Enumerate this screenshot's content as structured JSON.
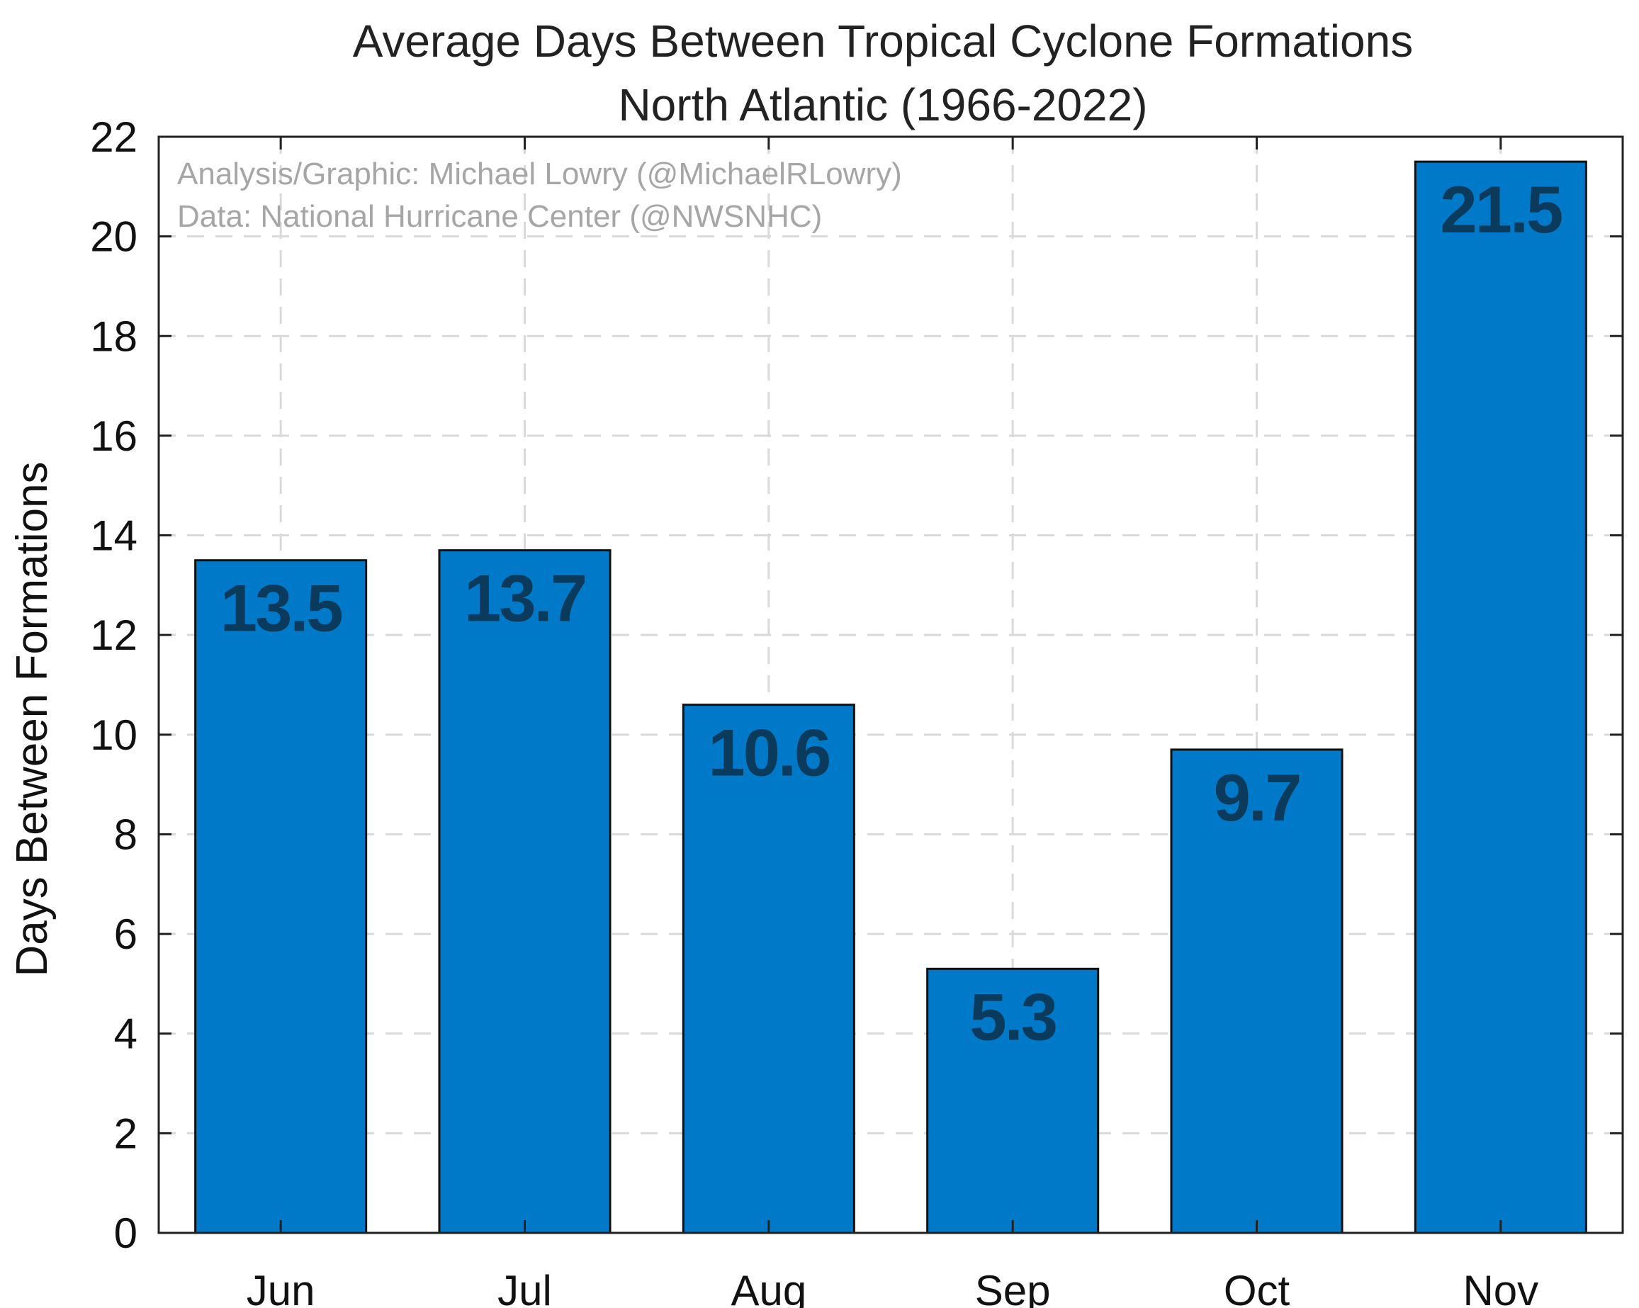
{
  "chart_data": {
    "type": "bar",
    "title_lines": [
      "Average Days Between Tropical Cyclone Formations",
      "North Atlantic (1966-2022)"
    ],
    "xlabel": "",
    "ylabel": "Days Between Formations",
    "categories": [
      "Jun",
      "Jul",
      "Aug",
      "Sep",
      "Oct",
      "Nov"
    ],
    "values": [
      13.5,
      13.7,
      10.6,
      5.3,
      9.7,
      21.5
    ],
    "value_labels": [
      "13.5",
      "13.7",
      "10.6",
      "5.3",
      "9.7",
      "21.5"
    ],
    "ylim": [
      0,
      22
    ],
    "yticks": [
      0,
      2,
      4,
      6,
      8,
      10,
      12,
      14,
      16,
      18,
      20,
      22
    ],
    "grid": true,
    "legend": "none",
    "annotations": [
      "Analysis/Graphic: Michael Lowry (@MichaelRLowry)",
      "Data: National Hurricane Center (@NWSNHC)"
    ],
    "colors": {
      "bar": "#007ac8",
      "bar_edge": "#111111",
      "value_label": "#0b3b5c",
      "grid": "#d9d9d9",
      "credit": "#a6a6a6"
    }
  }
}
